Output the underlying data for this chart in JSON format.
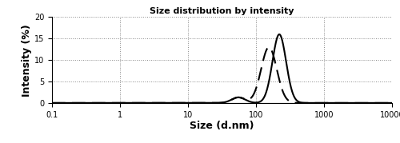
{
  "title": "Size distribution by intensity",
  "xlabel": "Size (d.nm)",
  "ylabel": "Intensity (%)",
  "xlim": [
    0.1,
    10000
  ],
  "ylim": [
    0,
    20
  ],
  "yticks": [
    0,
    5,
    10,
    15,
    20
  ],
  "xticks": [
    0.1,
    1,
    10,
    100,
    1000,
    10000
  ],
  "xtick_labels": [
    "0.1",
    "1",
    "10",
    "100",
    "1000",
    "10000"
  ],
  "background_color": "#ffffff",
  "solid_color": "#000000",
  "dashed_color": "#000000",
  "solid_peak_x": 220,
  "solid_peak_y": 16.0,
  "solid_peak_sigma": 0.1,
  "dashed_peak_x": 155,
  "dashed_peak_y": 13.0,
  "dashed_peak_sigma": 0.115,
  "small_bump_x": 55,
  "small_bump_y": 1.3,
  "small_bump_sigma": 0.1,
  "title_fontsize": 8,
  "label_fontsize": 9,
  "tick_fontsize": 7
}
